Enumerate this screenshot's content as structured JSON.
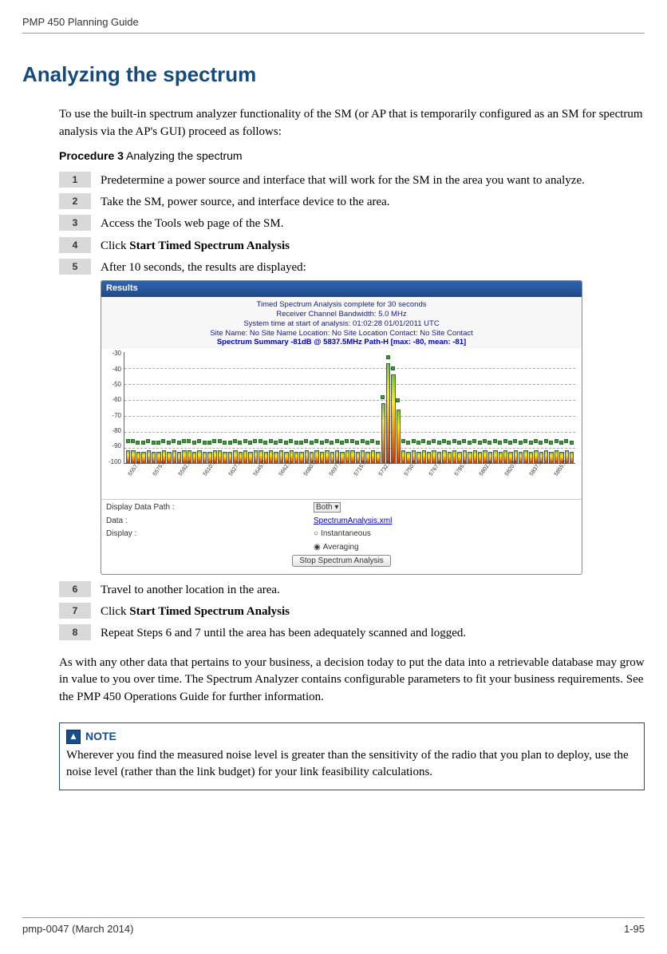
{
  "header": {
    "doc_title": "PMP 450 Planning Guide"
  },
  "section_title": "Analyzing the spectrum",
  "intro": "To use the built-in spectrum analyzer functionality of the SM (or AP that is temporarily configured as an SM for spectrum analysis via the AP's GUI) proceed as follows:",
  "procedure": {
    "label_bold": "Procedure 3",
    "label_rest": "  Analyzing the spectrum"
  },
  "steps": {
    "s1": {
      "n": "1",
      "text": "Predetermine a power source and interface that will work for the SM  in the area you want to analyze."
    },
    "s2": {
      "n": "2",
      "text": "Take the SM, power source, and interface device to the area."
    },
    "s3": {
      "n": "3",
      "text": "Access the Tools web page of the SM."
    },
    "s4": {
      "n": "4",
      "pre": "Click ",
      "bold": "Start Timed Spectrum Analysis"
    },
    "s5": {
      "n": "5",
      "text": "After 10 seconds, the results are displayed:"
    },
    "s6": {
      "n": "6",
      "text": "Travel to another location in the area."
    },
    "s7": {
      "n": "7",
      "pre": "Click ",
      "bold": "Start Timed Spectrum Analysis"
    },
    "s8": {
      "n": "8",
      "text": "Repeat Steps 6 and 7 until the area has been adequately scanned and logged."
    }
  },
  "screenshot": {
    "titlebar": "Results",
    "header_lines": {
      "l1": "Timed Spectrum Analysis complete for 30 seconds",
      "l2": "Receiver Channel Bandwidth:  5.0 MHz",
      "l3": "System time at start of analysis: 01:02:28 01/01/2011 UTC",
      "l4": "Site Name: No Site Name  Location: No Site Location  Contact: No Site Contact",
      "summary": "Spectrum Summary -81dB @ 5837.5MHz Path-H [max: -80, mean: -81]"
    },
    "y_axis": {
      "values": [
        "-30",
        "-40",
        "-50",
        "-60",
        "-70",
        "-80",
        "-90",
        "-100"
      ],
      "min": -100,
      "max": -30
    },
    "grid_levels": [
      -40,
      -50,
      -60,
      -70,
      -80,
      -90
    ],
    "bars": {
      "heights_db": [
        -92,
        -92,
        -93,
        -93,
        -92,
        -93,
        -93,
        -92,
        -93,
        -92,
        -93,
        -92,
        -92,
        -93,
        -92,
        -93,
        -93,
        -92,
        -92,
        -93,
        -93,
        -92,
        -93,
        -92,
        -93,
        -92,
        -92,
        -93,
        -92,
        -93,
        -92,
        -93,
        -92,
        -93,
        -93,
        -92,
        -93,
        -92,
        -93,
        -92,
        -93,
        -92,
        -93,
        -92,
        -92,
        -93,
        -92,
        -93,
        -92,
        -93,
        -62,
        -37,
        -44,
        -66,
        -92,
        -93,
        -92,
        -93,
        -92,
        -93,
        -92,
        -93,
        -92,
        -93,
        -92,
        -93,
        -92,
        -93,
        -92,
        -93,
        -92,
        -93,
        -92,
        -93,
        -92,
        -93,
        -92,
        -93,
        -92,
        -93,
        -92,
        -93,
        -92,
        -93,
        -92,
        -93,
        -92,
        -93
      ],
      "caps_db": [
        -86,
        -86,
        -87,
        -87,
        -86,
        -87,
        -87,
        -86,
        -87,
        -86,
        -87,
        -86,
        -86,
        -87,
        -86,
        -87,
        -87,
        -86,
        -86,
        -87,
        -87,
        -86,
        -87,
        -86,
        -87,
        -86,
        -86,
        -87,
        -86,
        -87,
        -86,
        -87,
        -86,
        -87,
        -87,
        -86,
        -87,
        -86,
        -87,
        -86,
        -87,
        -86,
        -87,
        -86,
        -86,
        -87,
        -86,
        -87,
        -86,
        -87,
        -58,
        -33,
        -40,
        -60,
        -86,
        -87,
        -86,
        -87,
        -86,
        -87,
        -86,
        -87,
        -86,
        -87,
        -86,
        -87,
        -86,
        -87,
        -86,
        -87,
        -86,
        -87,
        -86,
        -87,
        -86,
        -87,
        -86,
        -87,
        -86,
        -87,
        -86,
        -87,
        -86,
        -87,
        -86,
        -87,
        -86,
        -87
      ]
    },
    "x_axis_labels": [
      "5557.5",
      "5575.0",
      "5592.5",
      "5610.0",
      "5627.5",
      "5645.0",
      "5662.5",
      "5680.0",
      "5697.5",
      "5715.0",
      "5732.5",
      "5750.0",
      "5767.5",
      "5785.0",
      "5802.5",
      "5820.0",
      "5837.5",
      "5855.0"
    ],
    "controls": {
      "data_path_label": "Display Data Path :",
      "data_path_value": "Both",
      "data_label": "Data :",
      "data_link": "SpectrumAnalysis.xml",
      "display_label": "Display :",
      "opt1": "Instantaneous",
      "opt2": "Averaging",
      "stop_btn": "Stop Spectrum Analysis"
    }
  },
  "after_text": "As with any other data that pertains to your business, a decision today to put the data into a retrievable database may grow in value to you over time.  The Spectrum Analyzer contains configurable parameters to fit your business requirements.  See the PMP 450 Operations Guide for further information.",
  "note": {
    "icon_char": "▲",
    "badge": "NOTE",
    "text": "Wherever you find the measured noise level is greater than the sensitivity of the radio that you plan to deploy, use the noise level (rather than the link budget) for your link feasibility calculations."
  },
  "footer": {
    "left": "pmp-0047 (March 2014)",
    "right": "1-95"
  },
  "colors": {
    "heading": "#174a7c",
    "note_border": "#1a4c8a",
    "titlebar_top": "#2f64b0",
    "titlebar_bot": "#214a86",
    "link": "#0000cc"
  }
}
